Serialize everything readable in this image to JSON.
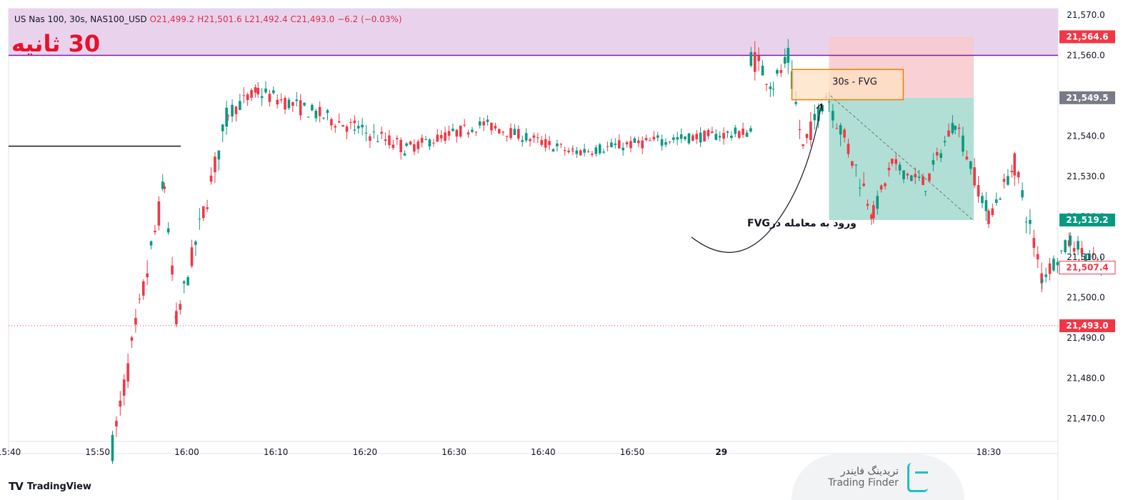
{
  "header": {
    "symbol": "US Nas 100, 30s, NAS100_USD",
    "open": "O21,499.2",
    "high": "H21,501.6",
    "low": "L21,492.4",
    "close": "C21,493.0",
    "change": "−6.2 (−0.03%)",
    "title_overlay": "30 ثانیه"
  },
  "branding": {
    "tradingview": "TradingView",
    "watermark_fa": "تریدینگ فایندر",
    "watermark_en": "Trading Finder"
  },
  "annotations": {
    "fvg_label": "30s - FVG",
    "entry_text": "ورود به معامله درFVG"
  },
  "colors": {
    "up": "#089981",
    "down": "#f23645",
    "premium_zone": "#e9d3ec",
    "premium_line": "#7b1fa2",
    "fvg_box": "#ffe0c2",
    "fvg_border": "#f57c00",
    "stop_zone": "#f8c9cd",
    "target_zone": "#a8dcd0",
    "current_price_bg": "#f23645",
    "target_price_bg": "#089981",
    "entry_price_bg": "#787b86"
  },
  "chart_data": {
    "type": "candlestick",
    "y_axis": {
      "min": 21465,
      "max": 21572,
      "ticks": [
        21470,
        21480,
        21490,
        21500,
        21510,
        21520,
        21530,
        21540,
        21550,
        21560,
        21570
      ],
      "tick_labels": [
        "21,470.0",
        "21,480.0",
        "21,490.0",
        "21,500.0",
        "21,510.0",
        "21,520.0",
        "21,530.0",
        "21,540.0",
        "21,550.0",
        "21,560.0",
        "21,570.0"
      ]
    },
    "x_axis": {
      "min": 0,
      "max": 1475,
      "ticks": [
        {
          "t": 0,
          "label": "15:40"
        },
        {
          "t": 120,
          "label": "15:50"
        },
        {
          "t": 240,
          "label": "16:00"
        },
        {
          "t": 360,
          "label": "16:10"
        },
        {
          "t": 480,
          "label": "16:20"
        },
        {
          "t": 600,
          "label": "16:30"
        },
        {
          "t": 720,
          "label": "16:40"
        },
        {
          "t": 840,
          "label": "16:50"
        },
        {
          "t": 960,
          "label": "29"
        },
        {
          "t": 1320,
          "label": "18:30"
        }
      ]
    },
    "price_labels": [
      {
        "value": 21564.6,
        "label": "21,564.6",
        "style": "red"
      },
      {
        "value": 21549.5,
        "label": "21,549.5",
        "style": "gray"
      },
      {
        "value": 21519.2,
        "label": "21,519.2",
        "style": "green"
      },
      {
        "value": 21507.4,
        "label": "21,507.4",
        "style": "outline"
      },
      {
        "value": 21493.0,
        "label": "21,493.0",
        "style": "red"
      }
    ],
    "levels": {
      "premium_line": 21560.0,
      "dotted_current": 21493.0,
      "black_level": 21537.5
    },
    "zones": {
      "fvg": {
        "t0": 1055,
        "t1": 1205,
        "y_top": 21556.5,
        "y_bottom": 21549.0
      },
      "stop": {
        "t0": 1105,
        "t1": 1300,
        "y_top": 21564.6,
        "y_bottom": 21549.5
      },
      "target": {
        "t0": 1105,
        "t1": 1300,
        "y_top": 21549.5,
        "y_bottom": 21519.2
      }
    },
    "segments": [
      {
        "t0": 140,
        "t1": 210,
        "from": 21463,
        "to": 21528,
        "vol": 3.5
      },
      {
        "t0": 210,
        "t1": 226,
        "from": 21528,
        "to": 21494,
        "vol": 2.5
      },
      {
        "t0": 226,
        "t1": 296,
        "from": 21494,
        "to": 21546,
        "vol": 3
      },
      {
        "t0": 296,
        "t1": 336,
        "from": 21546,
        "to": 21551,
        "vol": 2
      },
      {
        "t0": 336,
        "t1": 466,
        "from": 21551,
        "to": 21542,
        "vol": 2
      },
      {
        "t0": 466,
        "t1": 536,
        "from": 21542,
        "to": 21537,
        "vol": 2
      },
      {
        "t0": 536,
        "t1": 640,
        "from": 21537,
        "to": 21543,
        "vol": 1.5
      },
      {
        "t0": 640,
        "t1": 760,
        "from": 21543,
        "to": 21536,
        "vol": 1.5
      },
      {
        "t0": 760,
        "t1": 880,
        "from": 21536,
        "to": 21539,
        "vol": 1.5
      },
      {
        "t0": 880,
        "t1": 1000,
        "from": 21539,
        "to": 21541,
        "vol": 1.5
      },
      {
        "t0": 1000,
        "t1": 1030,
        "from": 21560,
        "to": 21553,
        "vol": 3
      },
      {
        "t0": 1030,
        "t1": 1050,
        "from": 21553,
        "to": 21559,
        "vol": 2.5
      },
      {
        "t0": 1050,
        "t1": 1070,
        "from": 21559,
        "to": 21537,
        "vol": 3
      },
      {
        "t0": 1070,
        "t1": 1105,
        "from": 21537,
        "to": 21552,
        "vol": 2.5
      },
      {
        "t0": 1105,
        "t1": 1165,
        "from": 21549,
        "to": 21521,
        "vol": 3
      },
      {
        "t0": 1165,
        "t1": 1190,
        "from": 21521,
        "to": 21533,
        "vol": 2
      },
      {
        "t0": 1190,
        "t1": 1235,
        "from": 21533,
        "to": 21528,
        "vol": 2
      },
      {
        "t0": 1235,
        "t1": 1275,
        "from": 21528,
        "to": 21544,
        "vol": 2
      },
      {
        "t0": 1275,
        "t1": 1320,
        "from": 21544,
        "to": 21520,
        "vol": 2.5
      },
      {
        "t0": 1320,
        "t1": 1355,
        "from": 21520,
        "to": 21533,
        "vol": 2
      },
      {
        "t0": 1355,
        "t1": 1392,
        "from": 21533,
        "to": 21505,
        "vol": 3
      },
      {
        "t0": 1392,
        "t1": 1430,
        "from": 21505,
        "to": 21514,
        "vol": 2
      },
      {
        "t0": 1430,
        "t1": 1475,
        "from": 21514,
        "to": 21507,
        "vol": 2
      }
    ]
  }
}
